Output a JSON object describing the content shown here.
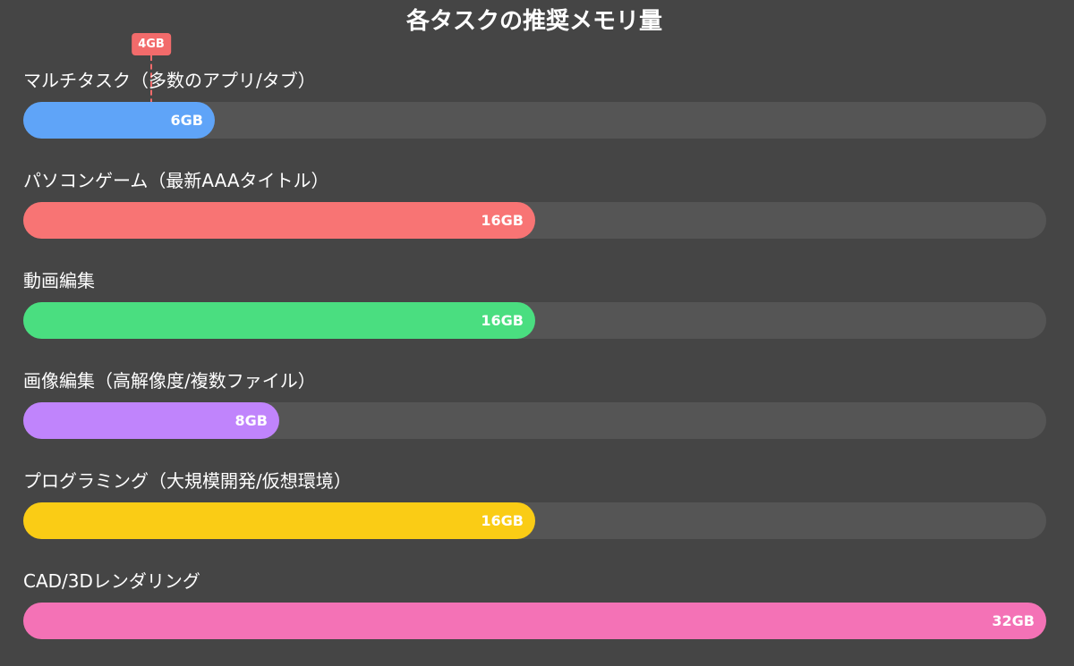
{
  "chart_data": {
    "type": "bar",
    "orientation": "horizontal",
    "title": "各タスクの推奨メモリ量",
    "max_value": 32,
    "categories": [
      "マルチタスク（多数のアプリ/タブ）",
      "パソコンゲーム（最新AAAタイトル）",
      "動画編集",
      "画像編集（高解像度/複数ファイル）",
      "プログラミング（大規模開発/仮想環境）",
      "CAD/3Dレンダリング"
    ],
    "values": [
      6,
      16,
      16,
      8,
      16,
      32
    ],
    "value_labels": [
      "6GB",
      "16GB",
      "16GB",
      "8GB",
      "16GB",
      "32GB"
    ],
    "colors": [
      "#5fa4f8",
      "#f87474",
      "#4ade80",
      "#c084fc",
      "#facc15",
      "#f472b6"
    ],
    "track_color": "#555555",
    "reference_marker": {
      "value": 4,
      "label": "4GB",
      "color": "#f26b6b"
    }
  }
}
